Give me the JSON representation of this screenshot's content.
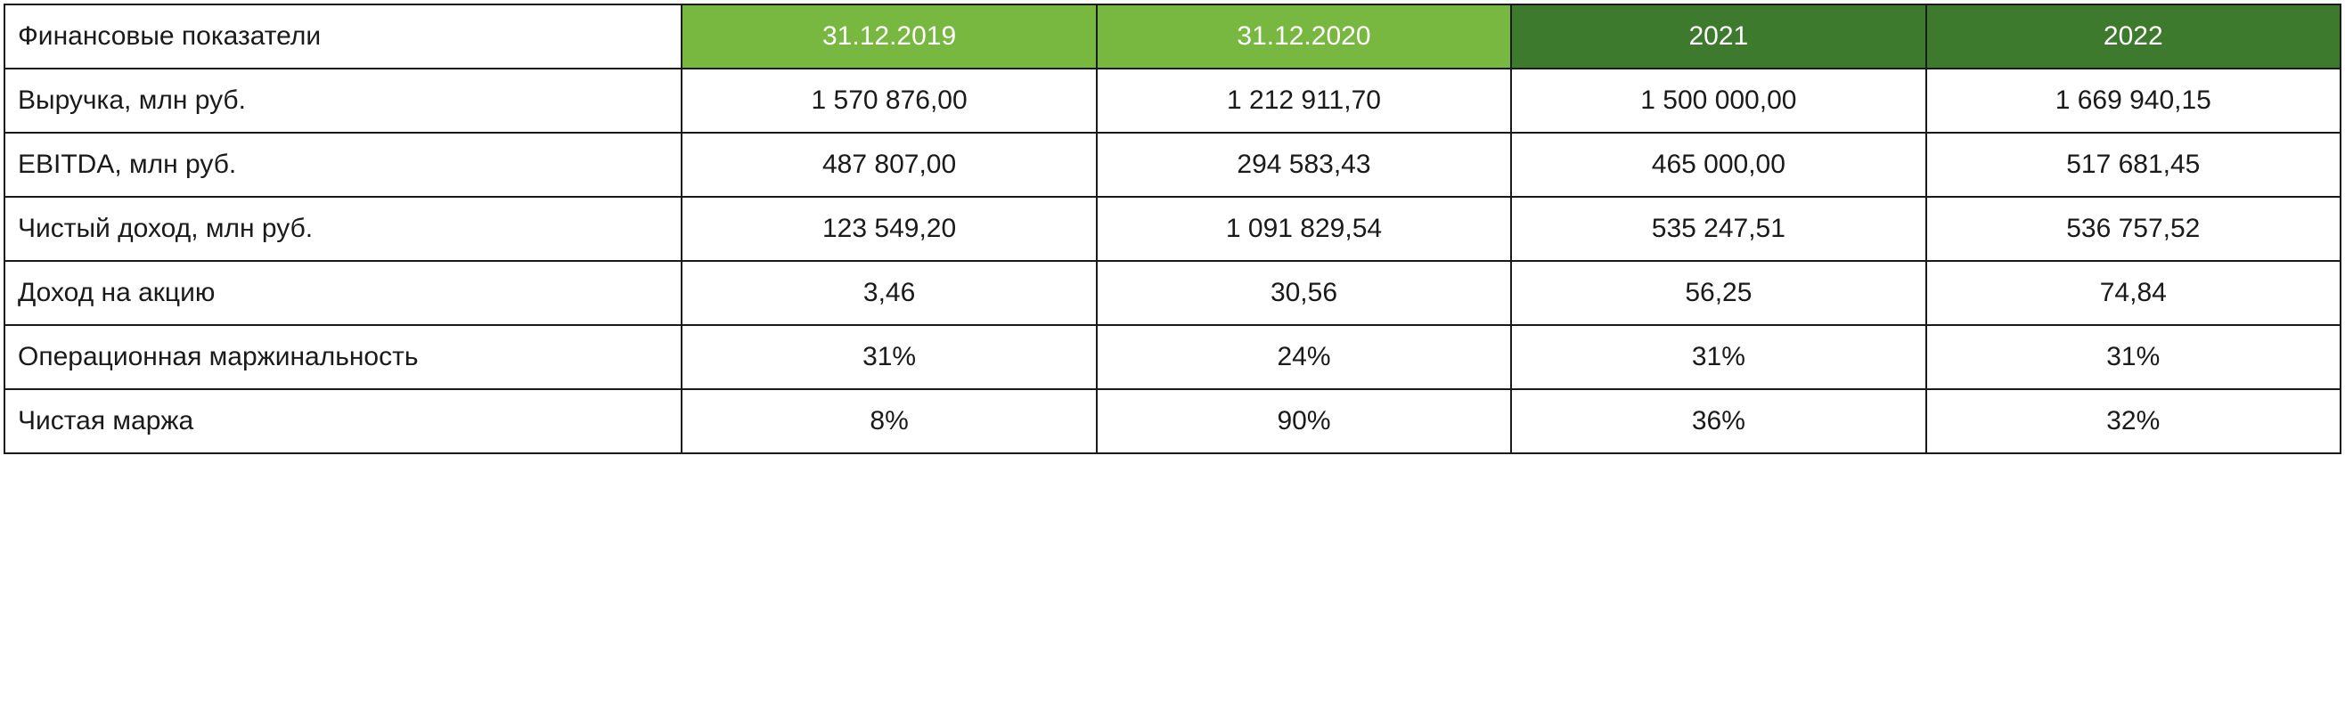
{
  "table": {
    "type": "table",
    "border_color": "#1a1a1a",
    "border_width": 2,
    "background_color": "#ffffff",
    "text_color": "#1a1a1a",
    "header_text_color": "#ffffff",
    "font_size": 30,
    "font_family": "Arial",
    "cell_padding_v": 18,
    "cell_padding_h": 14,
    "columns": [
      {
        "label": "Финансовые показатели",
        "width_pct": 29,
        "align": "left",
        "header_bg": "#ffffff",
        "header_color": "#1a1a1a"
      },
      {
        "label": "31.12.2019",
        "width_pct": 17.75,
        "align": "center",
        "header_bg": "#78b740",
        "header_color": "#ffffff"
      },
      {
        "label": "31.12.2020",
        "width_pct": 17.75,
        "align": "center",
        "header_bg": "#78b740",
        "header_color": "#ffffff"
      },
      {
        "label": "2021",
        "width_pct": 17.75,
        "align": "center",
        "header_bg": "#3d7a2d",
        "header_color": "#ffffff"
      },
      {
        "label": "2022",
        "width_pct": 17.75,
        "align": "center",
        "header_bg": "#3d7a2d",
        "header_color": "#ffffff"
      }
    ],
    "rows": [
      {
        "label": "Выручка, млн руб.",
        "values": [
          "1 570 876,00",
          "1 212 911,70",
          "1 500 000,00",
          "1 669 940,15"
        ]
      },
      {
        "label": "EBITDA, млн руб.",
        "values": [
          "487 807,00",
          "294 583,43",
          "465 000,00",
          "517 681,45"
        ]
      },
      {
        "label": "Чистый доход, млн руб.",
        "values": [
          "123 549,20",
          "1 091 829,54",
          "535 247,51",
          "536 757,52"
        ]
      },
      {
        "label": "Доход на акцию",
        "values": [
          "3,46",
          "30,56",
          "56,25",
          "74,84"
        ]
      },
      {
        "label": "Операционная маржинальность",
        "values": [
          "31%",
          "24%",
          "31%",
          "31%"
        ]
      },
      {
        "label": "Чистая маржа",
        "values": [
          "8%",
          "90%",
          "36%",
          "32%"
        ]
      }
    ]
  }
}
